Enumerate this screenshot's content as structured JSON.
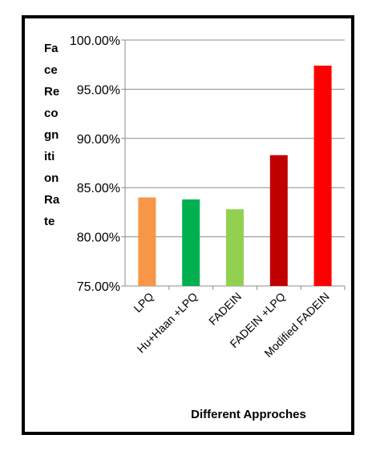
{
  "chart_data": {
    "type": "bar",
    "title": "",
    "xlabel": "Different Approches",
    "ylabel": "Face Recognition Rate",
    "ylabel_lines": [
      "Fa",
      "ce",
      "Re",
      "co",
      "gn",
      "iti",
      "on",
      "Ra",
      "te"
    ],
    "categories": [
      "LPQ",
      "Hu+Haan +LPQ",
      "FADEIN",
      "FADEIN +LPQ",
      "Modified FADEIN"
    ],
    "values": [
      84.0,
      83.8,
      82.8,
      88.3,
      97.4
    ],
    "colors": [
      "#F79646",
      "#00B050",
      "#92D050",
      "#C00000",
      "#FF0000"
    ],
    "ylim": [
      75,
      100
    ],
    "yticks": [
      75,
      80,
      85,
      90,
      95,
      100
    ],
    "ytick_labels": [
      "75.00%",
      "80.00%",
      "85.00%",
      "90.00%",
      "95.00%",
      "100.00%"
    ],
    "grid": true,
    "legend": "none"
  }
}
